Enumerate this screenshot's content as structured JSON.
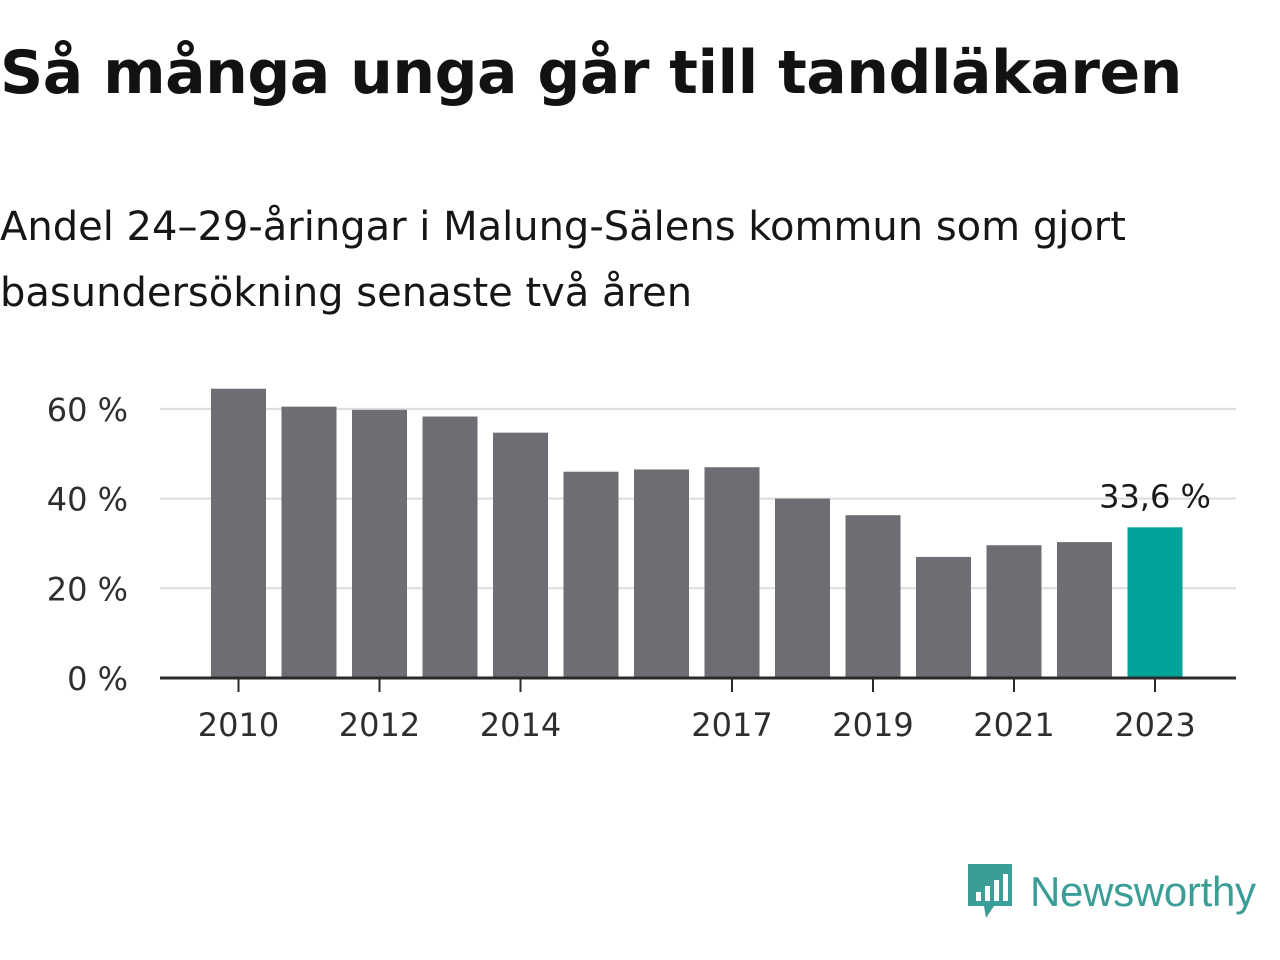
{
  "title": "Så många unga går till tandläkaren",
  "subtitle": "Andel 24–29-åringar i Malung-Sälens kommun som gjort basundersökning senaste två åren",
  "chart_data": {
    "type": "bar",
    "categories": [
      "2010",
      "2011",
      "2012",
      "2013",
      "2014",
      "2015",
      "2016",
      "2017",
      "2018",
      "2019",
      "2020",
      "2021",
      "2022",
      "2023"
    ],
    "values": [
      64.5,
      60.5,
      59.8,
      58.3,
      54.7,
      46.0,
      46.5,
      47.0,
      40.0,
      36.3,
      27.0,
      29.6,
      30.3,
      33.6
    ],
    "x_tick_labels": [
      "2010",
      "2012",
      "2014",
      "2017",
      "2019",
      "2021",
      "2023"
    ],
    "y_ticks": [
      0,
      20,
      40,
      60
    ],
    "y_tick_labels": [
      "0 %",
      "20 %",
      "40 %",
      "60 %"
    ],
    "ylim": [
      0,
      66
    ],
    "grid": true,
    "highlight_label": "33,6 %",
    "highlight_category": "2023",
    "colors": {
      "bar": "#6e6d73",
      "highlight": "#00a39a",
      "grid": "#dcdcdc",
      "axis": "#2a2a2a"
    }
  },
  "brand": {
    "name": "Newsworthy",
    "icon": "newsworthy-logo-icon",
    "color": "#3a9e97"
  }
}
